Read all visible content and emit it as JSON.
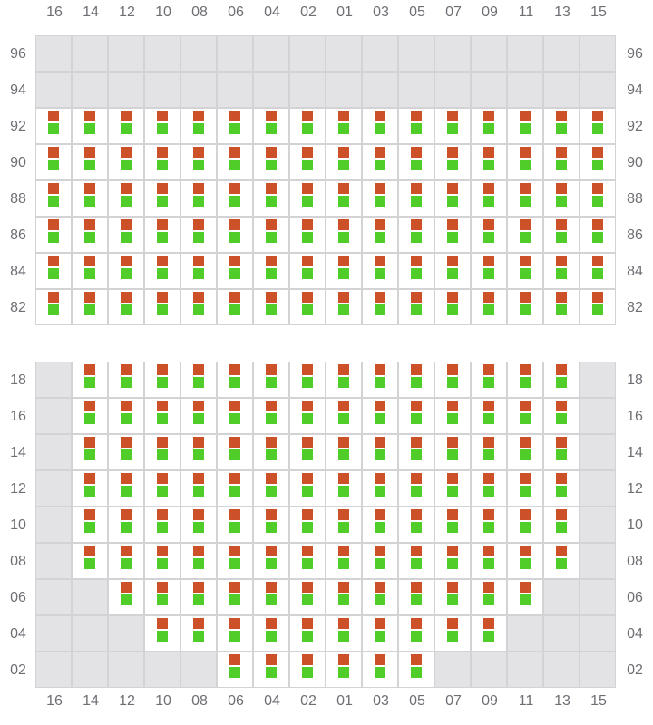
{
  "columns": [
    "16",
    "14",
    "12",
    "10",
    "08",
    "06",
    "04",
    "02",
    "01",
    "03",
    "05",
    "07",
    "09",
    "11",
    "13",
    "15"
  ],
  "marker_colors": {
    "upper": "#cc5028",
    "lower": "#50cd28"
  },
  "empty_color": "#e3e3e6",
  "sections": [
    {
      "rows": [
        {
          "label": "96",
          "occupied": []
        },
        {
          "label": "94",
          "occupied": []
        },
        {
          "label": "92",
          "occupied": [
            "16",
            "14",
            "12",
            "10",
            "08",
            "06",
            "04",
            "02",
            "01",
            "03",
            "05",
            "07",
            "09",
            "11",
            "13",
            "15"
          ]
        },
        {
          "label": "90",
          "occupied": [
            "16",
            "14",
            "12",
            "10",
            "08",
            "06",
            "04",
            "02",
            "01",
            "03",
            "05",
            "07",
            "09",
            "11",
            "13",
            "15"
          ]
        },
        {
          "label": "88",
          "occupied": [
            "16",
            "14",
            "12",
            "10",
            "08",
            "06",
            "04",
            "02",
            "01",
            "03",
            "05",
            "07",
            "09",
            "11",
            "13",
            "15"
          ]
        },
        {
          "label": "86",
          "occupied": [
            "16",
            "14",
            "12",
            "10",
            "08",
            "06",
            "04",
            "02",
            "01",
            "03",
            "05",
            "07",
            "09",
            "11",
            "13",
            "15"
          ]
        },
        {
          "label": "84",
          "occupied": [
            "16",
            "14",
            "12",
            "10",
            "08",
            "06",
            "04",
            "02",
            "01",
            "03",
            "05",
            "07",
            "09",
            "11",
            "13",
            "15"
          ]
        },
        {
          "label": "82",
          "occupied": [
            "16",
            "14",
            "12",
            "10",
            "08",
            "06",
            "04",
            "02",
            "01",
            "03",
            "05",
            "07",
            "09",
            "11",
            "13",
            "15"
          ]
        }
      ]
    },
    {
      "rows": [
        {
          "label": "18",
          "occupied": [
            "14",
            "12",
            "10",
            "08",
            "06",
            "04",
            "02",
            "01",
            "03",
            "05",
            "07",
            "09",
            "11",
            "13"
          ]
        },
        {
          "label": "16",
          "occupied": [
            "14",
            "12",
            "10",
            "08",
            "06",
            "04",
            "02",
            "01",
            "03",
            "05",
            "07",
            "09",
            "11",
            "13"
          ]
        },
        {
          "label": "14",
          "occupied": [
            "14",
            "12",
            "10",
            "08",
            "06",
            "04",
            "02",
            "01",
            "03",
            "05",
            "07",
            "09",
            "11",
            "13"
          ]
        },
        {
          "label": "12",
          "occupied": [
            "14",
            "12",
            "10",
            "08",
            "06",
            "04",
            "02",
            "01",
            "03",
            "05",
            "07",
            "09",
            "11",
            "13"
          ]
        },
        {
          "label": "10",
          "occupied": [
            "14",
            "12",
            "10",
            "08",
            "06",
            "04",
            "02",
            "01",
            "03",
            "05",
            "07",
            "09",
            "11",
            "13"
          ]
        },
        {
          "label": "08",
          "occupied": [
            "14",
            "12",
            "10",
            "08",
            "06",
            "04",
            "02",
            "01",
            "03",
            "05",
            "07",
            "09",
            "11",
            "13"
          ]
        },
        {
          "label": "06",
          "occupied": [
            "12",
            "10",
            "08",
            "06",
            "04",
            "02",
            "01",
            "03",
            "05",
            "07",
            "09",
            "11"
          ]
        },
        {
          "label": "04",
          "occupied": [
            "10",
            "08",
            "06",
            "04",
            "02",
            "01",
            "03",
            "05",
            "07",
            "09"
          ]
        },
        {
          "label": "02",
          "occupied": [
            "06",
            "04",
            "02",
            "01",
            "03",
            "05"
          ]
        }
      ]
    }
  ]
}
